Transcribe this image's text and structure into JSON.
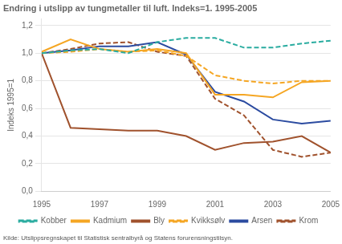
{
  "chart_data": {
    "type": "line",
    "title": "Endring i utslipp av tungmetaller til luft. Indeks=1. 1995-2005",
    "ylabel": "Indeks 1995=1",
    "annotations": [
      "Kilde: Utslippsregnskapet til Statistisk sentralbyrå og Statens forurensningstilsyn."
    ],
    "x": [
      1995,
      1996,
      1997,
      1998,
      1999,
      2000,
      2001,
      2002,
      2003,
      2004,
      2005
    ],
    "series": [
      {
        "name": "Kobber",
        "color": "#2AACA0",
        "line_style": "dashed",
        "values": [
          1.0,
          1.02,
          1.03,
          1.0,
          1.08,
          1.11,
          1.11,
          1.04,
          1.04,
          1.07,
          1.09
        ]
      },
      {
        "name": "Kadmium",
        "color": "#F5A623",
        "line_style": "solid",
        "values": [
          1.01,
          1.1,
          1.03,
          1.01,
          1.03,
          1.0,
          0.7,
          0.7,
          0.68,
          0.79,
          0.8
        ]
      },
      {
        "name": "Bly",
        "color": "#A0522D",
        "line_style": "solid",
        "values": [
          1.0,
          0.46,
          0.45,
          0.44,
          0.44,
          0.4,
          0.3,
          0.35,
          0.36,
          0.4,
          0.28
        ]
      },
      {
        "name": "Kvikksølv",
        "color": "#F5A623",
        "line_style": "dashed",
        "values": [
          1.0,
          1.01,
          1.03,
          1.01,
          1.02,
          0.98,
          0.84,
          0.8,
          0.78,
          0.8,
          0.8
        ]
      },
      {
        "name": "Arsen",
        "color": "#2B4BA0",
        "line_style": "solid",
        "values": [
          1.0,
          1.02,
          1.05,
          1.05,
          1.08,
          0.99,
          0.72,
          0.65,
          0.52,
          0.49,
          0.51
        ]
      },
      {
        "name": "Krom",
        "color": "#A0522D",
        "line_style": "dashed",
        "values": [
          1.0,
          1.03,
          1.07,
          1.08,
          1.01,
          0.98,
          0.67,
          0.55,
          0.3,
          0.25,
          0.28
        ]
      }
    ],
    "xlim": [
      1995,
      2005
    ],
    "xticks": [
      1995,
      1997,
      1999,
      2001,
      2003,
      2005
    ],
    "ylim": [
      0.0,
      1.25
    ],
    "yticks": [
      {
        "value": 0.0,
        "label": "0,0"
      },
      {
        "value": 0.2,
        "label": "0,2"
      },
      {
        "value": 0.4,
        "label": "0,4"
      },
      {
        "value": 0.6,
        "label": "0,6"
      },
      {
        "value": 0.8,
        "label": "0,8"
      },
      {
        "value": 1.0,
        "label": "1,0"
      },
      {
        "value": 1.2,
        "label": "1,2"
      }
    ],
    "grid": "y",
    "legend": "bottom",
    "marker": "none"
  }
}
